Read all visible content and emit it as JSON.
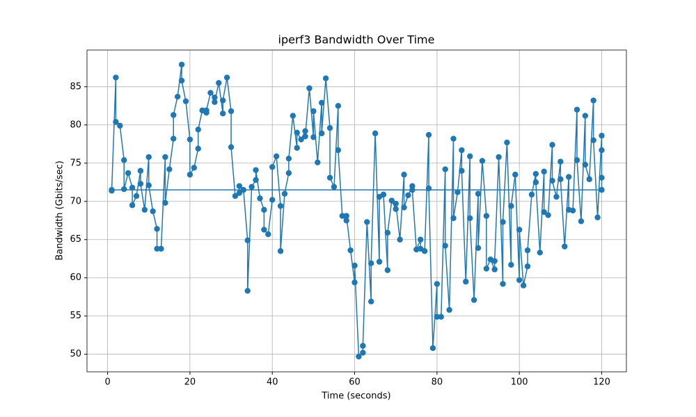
{
  "chart_data": {
    "type": "line",
    "title": "iperf3 Bandwidth Over Time",
    "x_label": "Time (seconds)",
    "y_label": "Bandwidth (Gbits/sec)",
    "x": [
      1,
      2,
      2,
      3,
      4,
      4,
      5,
      6,
      6,
      7,
      8,
      8,
      9,
      10,
      10,
      11,
      12,
      12,
      13,
      14,
      14,
      15,
      16,
      16,
      17,
      18,
      18,
      19,
      20,
      20,
      21,
      22,
      22,
      23,
      24,
      24,
      25,
      26,
      26,
      27,
      28,
      28,
      29,
      30,
      30,
      31,
      32,
      32,
      33,
      34,
      34,
      35,
      36,
      36,
      37,
      38,
      38,
      39,
      40,
      40,
      41,
      42,
      42,
      43,
      44,
      44,
      45,
      46,
      46,
      47,
      48,
      48,
      49,
      50,
      50,
      51,
      52,
      52,
      53,
      54,
      54,
      55,
      56,
      56,
      57,
      58,
      58,
      59,
      60,
      60,
      61,
      62,
      62,
      63,
      64,
      64,
      65,
      66,
      66,
      67,
      68,
      68,
      69,
      70,
      70,
      71,
      72,
      72,
      73,
      74,
      74,
      75,
      76,
      76,
      77,
      78,
      78,
      79,
      80,
      80,
      81,
      82,
      82,
      83,
      84,
      84,
      85,
      86,
      86,
      87,
      88,
      88,
      89,
      90,
      90,
      91,
      92,
      92,
      93,
      94,
      94,
      95,
      96,
      96,
      97,
      98,
      98,
      99,
      100,
      100,
      101,
      102,
      102,
      103,
      104,
      104,
      105,
      106,
      106,
      107,
      108,
      108,
      109,
      110,
      110,
      111,
      112,
      112,
      113,
      114,
      114,
      115,
      116,
      116,
      117,
      118,
      118,
      119,
      120,
      120,
      120,
      120,
      1
    ],
    "values": [
      71.4,
      86.2,
      80.4,
      79.9,
      75.4,
      71.6,
      73.7,
      71.8,
      69.5,
      70.7,
      74.0,
      72.3,
      68.9,
      75.8,
      72.1,
      68.7,
      66.4,
      63.8,
      63.8,
      75.8,
      69.8,
      74.2,
      78.2,
      81.3,
      83.7,
      87.9,
      85.8,
      83.1,
      78.1,
      73.5,
      74.4,
      76.9,
      79.4,
      81.9,
      81.6,
      81.9,
      84.2,
      83.6,
      83.0,
      85.5,
      81.5,
      83.2,
      86.2,
      81.8,
      77.1,
      70.7,
      71.1,
      72.0,
      71.5,
      64.9,
      58.3,
      71.9,
      72.8,
      74.1,
      70.4,
      68.9,
      66.3,
      65.7,
      70.2,
      74.5,
      75.9,
      69.4,
      63.5,
      71.0,
      73.7,
      75.6,
      81.2,
      77.0,
      79.0,
      78.1,
      79.2,
      78.5,
      84.8,
      78.4,
      81.8,
      75.1,
      82.9,
      78.9,
      86.1,
      79.6,
      73.1,
      71.9,
      82.5,
      76.7,
      68.1,
      67.5,
      68.1,
      63.6,
      59.4,
      61.6,
      49.7,
      50.2,
      51.1,
      67.3,
      56.9,
      61.9,
      78.9,
      62.1,
      70.6,
      70.9,
      61.0,
      65.9,
      70.1,
      69.0,
      69.7,
      65.0,
      73.5,
      69.2,
      70.8,
      72.0,
      71.5,
      63.7,
      65.0,
      63.8,
      63.5,
      78.7,
      71.7,
      50.8,
      59.2,
      54.9,
      54.9,
      74.2,
      64.2,
      55.8,
      78.2,
      67.8,
      71.2,
      76.7,
      74.0,
      59.5,
      75.9,
      67.8,
      57.1,
      71.0,
      63.9,
      75.3,
      68.1,
      61.2,
      62.4,
      61.1,
      62.2,
      75.8,
      59.2,
      67.3,
      77.7,
      61.7,
      69.4,
      73.5,
      59.7,
      66.3,
      59.0,
      61.5,
      63.6,
      70.9,
      73.6,
      72.5,
      63.3,
      73.9,
      68.6,
      68.2,
      77.4,
      72.7,
      70.6,
      75.2,
      72.9,
      64.1,
      73.2,
      68.9,
      68.8,
      82.0,
      75.4,
      67.4,
      81.2,
      74.8,
      72.9,
      83.2,
      78.0,
      67.9,
      78.6,
      76.7,
      73.1,
      71.5,
      71.5
    ],
    "color": "#1f77b4",
    "xlim": [
      -5,
      126
    ],
    "xticks": [
      0,
      20,
      40,
      60,
      80,
      100,
      120
    ],
    "ylim": [
      47.7,
      89.8
    ],
    "yticks": [
      50,
      55,
      60,
      65,
      70,
      75,
      80,
      85
    ],
    "grid": true
  }
}
